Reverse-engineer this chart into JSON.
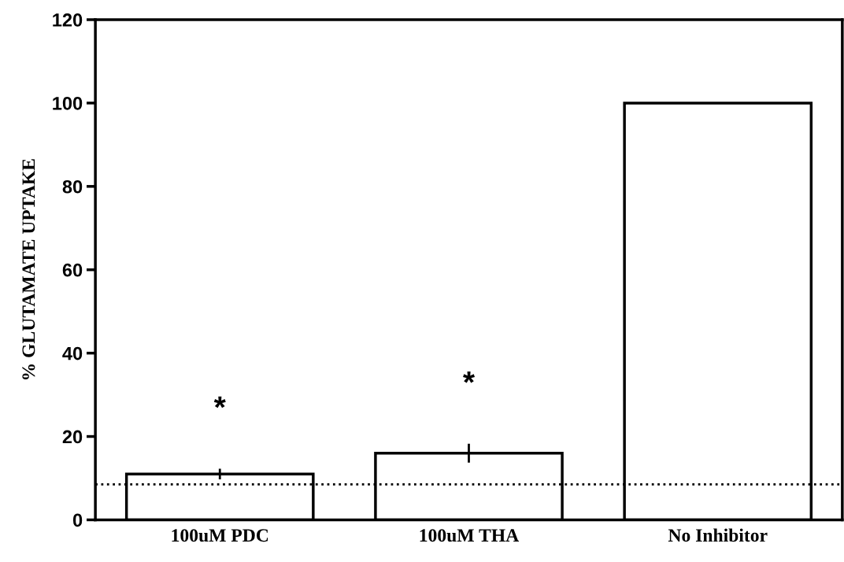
{
  "chart_data": {
    "type": "bar",
    "ylabel": "% GLUTAMATE UPTAKE",
    "categories": [
      "100uM PDC",
      "100uM THA",
      "No Inhibitor"
    ],
    "values": [
      11,
      16,
      100
    ],
    "errors": [
      1,
      2,
      null
    ],
    "color": "#ffffff",
    "ylim": [
      0,
      120
    ],
    "yticks": [
      0,
      20,
      40,
      60,
      80,
      100,
      120
    ],
    "ref_lines": [
      {
        "axis": "y",
        "value": 8.5,
        "line_style": "dotted",
        "color": "#000000"
      }
    ],
    "annotations": [
      "*",
      "*"
    ],
    "grid": false,
    "legend": false
  }
}
